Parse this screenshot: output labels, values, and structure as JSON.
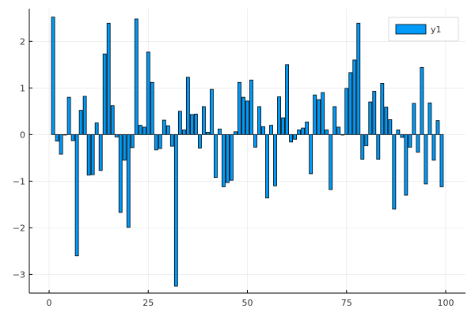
{
  "chart_data": {
    "type": "bar",
    "grid": true,
    "legend_position": "top-right",
    "xlim": [
      -5,
      105
    ],
    "ylim": [
      -3.4,
      2.7
    ],
    "x_ticks": [
      0,
      25,
      50,
      75,
      100
    ],
    "y_ticks": [
      -3,
      -2,
      -1,
      0,
      1,
      2
    ],
    "x_tick_labels": [
      "0",
      "25",
      "50",
      "75",
      "100"
    ],
    "y_tick_labels": [
      "−3",
      "−2",
      "−1",
      "0",
      "1",
      "2"
    ],
    "bar_color": "#009af9",
    "series": [
      {
        "name": "y1",
        "x": [
          1,
          2,
          3,
          4,
          5,
          6,
          7,
          8,
          9,
          10,
          11,
          12,
          13,
          14,
          15,
          16,
          17,
          18,
          19,
          20,
          21,
          22,
          23,
          24,
          25,
          26,
          27,
          28,
          29,
          30,
          31,
          32,
          33,
          34,
          35,
          36,
          37,
          38,
          39,
          40,
          41,
          42,
          43,
          44,
          45,
          46,
          47,
          48,
          49,
          50,
          51,
          52,
          53,
          54,
          55,
          56,
          57,
          58,
          59,
          60,
          61,
          62,
          63,
          64,
          65,
          66,
          67,
          68,
          69,
          70,
          71,
          72,
          73,
          74,
          75,
          76,
          77,
          78,
          79,
          80,
          81,
          82,
          83,
          84,
          85,
          86,
          87,
          88,
          89,
          90,
          91,
          92,
          93,
          94,
          95,
          96,
          97,
          98,
          99
        ],
        "values": [
          2.52,
          -0.14,
          -0.42,
          0.0,
          0.8,
          -0.13,
          -2.6,
          0.52,
          0.82,
          -0.87,
          -0.86,
          0.25,
          -0.77,
          1.73,
          2.39,
          0.62,
          -0.05,
          -1.67,
          -0.55,
          -1.99,
          -0.28,
          2.48,
          0.2,
          0.16,
          1.77,
          1.12,
          -0.33,
          -0.3,
          0.31,
          0.19,
          -0.25,
          -3.25,
          0.5,
          0.1,
          1.23,
          0.43,
          0.44,
          -0.29,
          0.6,
          0.05,
          0.97,
          -0.92,
          0.12,
          -1.12,
          -1.03,
          -0.98,
          0.06,
          1.12,
          0.8,
          0.72,
          1.17,
          -0.27,
          0.6,
          0.17,
          -1.36,
          0.2,
          -1.1,
          0.81,
          0.36,
          1.5,
          -0.16,
          -0.1,
          0.1,
          0.14,
          0.27,
          -0.84,
          0.85,
          0.75,
          0.9,
          0.1,
          -1.18,
          0.6,
          0.16,
          0.0,
          0.99,
          1.33,
          1.6,
          2.39,
          -0.53,
          -0.24,
          0.7,
          0.93,
          -0.53,
          1.1,
          0.59,
          0.32,
          -1.6,
          0.1,
          -0.06,
          -1.3,
          -0.27,
          0.67,
          -0.38,
          1.44,
          -1.06,
          0.68,
          -0.55,
          0.3,
          -1.12
        ]
      }
    ]
  }
}
